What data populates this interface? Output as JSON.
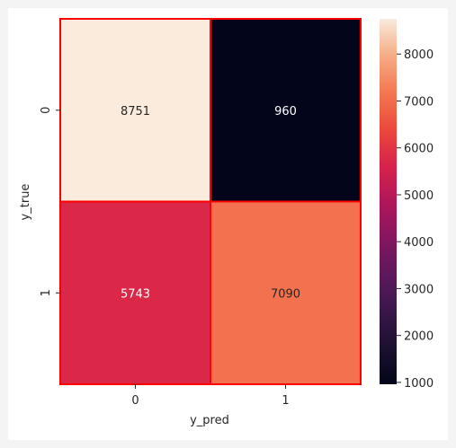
{
  "chart_data": {
    "type": "heatmap",
    "title": "",
    "xlabel": "y_pred",
    "ylabel": "y_true",
    "x_categories": [
      "0",
      "1"
    ],
    "y_categories": [
      "0",
      "1"
    ],
    "values": [
      [
        8751,
        960
      ],
      [
        5743,
        7090
      ]
    ],
    "cell_labels": [
      [
        "8751",
        "960"
      ],
      [
        "5743",
        "7090"
      ]
    ],
    "colorbar": {
      "min": 960,
      "max": 8751,
      "ticks": [
        1000,
        2000,
        3000,
        4000,
        5000,
        6000,
        7000,
        8000
      ],
      "tick_labels": [
        "1000",
        "2000",
        "3000",
        "4000",
        "5000",
        "6000",
        "7000",
        "8000"
      ],
      "colormap": "rocket"
    },
    "cell_border_color": "#ff0000",
    "grid": false
  }
}
